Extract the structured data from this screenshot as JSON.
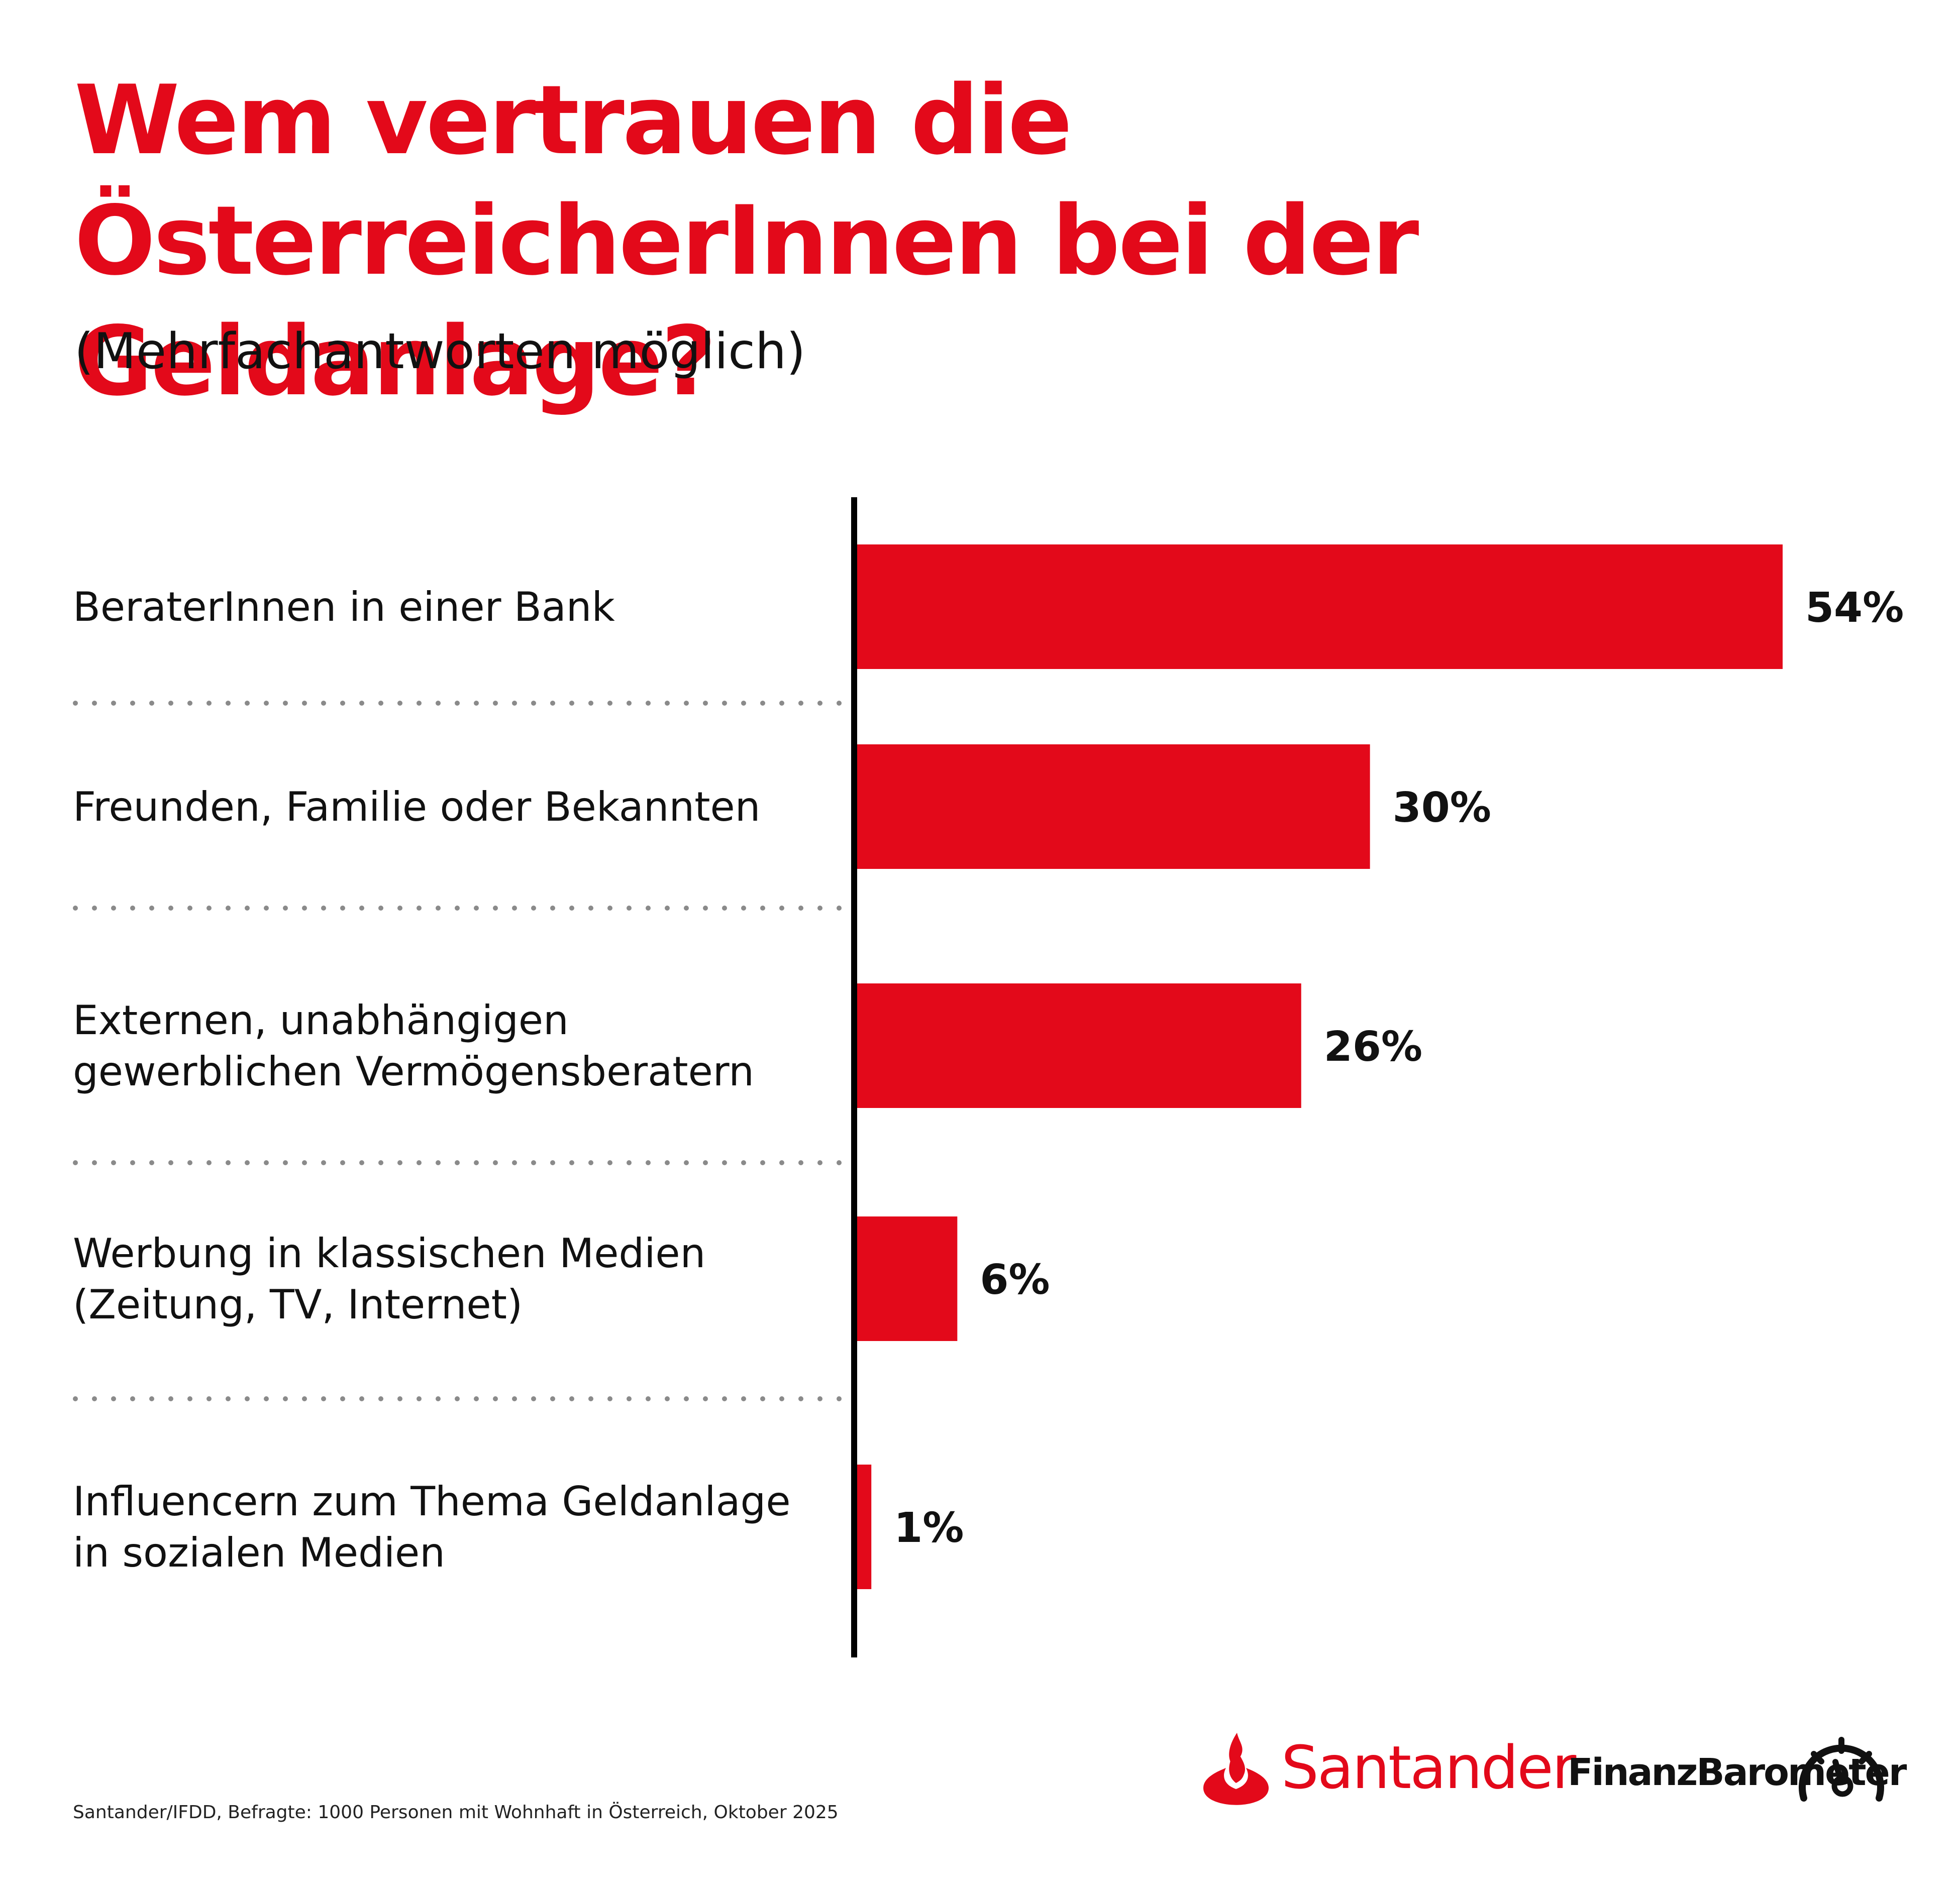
{
  "header": {
    "title": "Wem vertrauen die ÖsterreicherInnen bei der Geldanlage?",
    "subtitle": "(Mehrfachantworten möglich)"
  },
  "chart_data": {
    "type": "bar",
    "orientation": "horizontal",
    "categories": [
      [
        "BeraterInnen in einer Bank"
      ],
      [
        "Freunden, Familie oder Bekannten"
      ],
      [
        "Externen, unabhängigen",
        "gewerblichen Vermögensberatern"
      ],
      [
        "Werbung in klassischen Medien",
        "(Zeitung, TV, Internet)"
      ],
      [
        "Influencern zum Thema Geldanlage",
        "in sozialen Medien"
      ]
    ],
    "values": [
      54,
      30,
      26,
      6,
      1
    ],
    "value_labels": [
      "54%",
      "30%",
      "26%",
      "6%",
      "1%"
    ],
    "unit": "%",
    "xlim": [
      0,
      54
    ],
    "bar_color": "#e3091a",
    "grid": false,
    "legend": "none"
  },
  "footer": {
    "source": "Santander/IFDD, Befragte: 1000 Personen mit Wohnhaft in Österreich, Oktober 2025"
  },
  "brand": {
    "name": "Santander",
    "product": "FinanzBarometer",
    "color": "#e3091a"
  }
}
